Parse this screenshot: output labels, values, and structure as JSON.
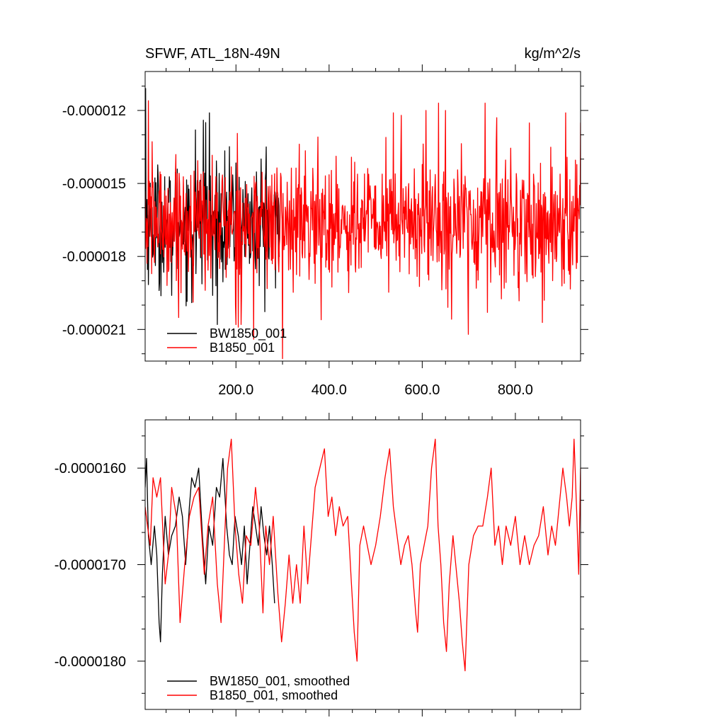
{
  "chart_data": [
    {
      "type": "line",
      "title": "SFWF, ATL_18N-49N",
      "units": "kg/m^2/s",
      "xlim": [
        5,
        940
      ],
      "ylim": [
        -2.23e-05,
        -1.04e-05
      ],
      "x_ticks": [
        200,
        400,
        600,
        800
      ],
      "x_tick_labels": [
        "200.0",
        "400.0",
        "600.0",
        "800.0"
      ],
      "y_ticks": [
        -1.2e-05,
        -1.5e-05,
        -1.8e-05,
        -2.1e-05
      ],
      "y_tick_labels": [
        "-0.000012",
        "-0.000015",
        "-0.000018",
        "-0.000021"
      ],
      "legend_position": "bottom-left",
      "series": [
        {
          "name": "BW1850_001",
          "color": "#000000",
          "x_range": [
            5,
            293
          ],
          "mean": -1.66e-05,
          "spread": 1.2e-06,
          "peaks": [
            [
              6,
              -1.11e-05
            ],
            [
              113,
              -1.28e-05
            ],
            [
              130,
              -1.24e-05
            ],
            [
              135,
              -1.25e-05
            ],
            [
              143,
              -1.21e-05
            ],
            [
              265,
              -1.35e-05
            ],
            [
              285,
              -1.29e-05
            ]
          ],
          "troughs": [
            [
              35,
              -1.94e-05
            ],
            [
              62,
              -1.96e-05
            ],
            [
              105,
              -1.99e-05
            ],
            [
              150,
              -1.96e-05
            ],
            [
              250,
              -1.92e-05
            ],
            [
              285,
              -1.93e-05
            ]
          ]
        },
        {
          "name": "B1850_001",
          "color": "#ff0000",
          "x_range": [
            5,
            940
          ],
          "mean": -1.66e-05,
          "spread": 1.3e-06,
          "peaks": [
            [
              12,
              -1.16e-05
            ],
            [
              538,
              -1.21e-05
            ],
            [
              555,
              -1.22e-05
            ],
            [
              608,
              -1.2e-05
            ],
            [
              635,
              -1.17e-05
            ],
            [
              650,
              -1.2e-05
            ],
            [
              735,
              -1.17e-05
            ],
            [
              760,
              -1.23e-05
            ],
            [
              908,
              -1.21e-05
            ],
            [
              940,
              -1.25e-05
            ]
          ],
          "troughs": [
            [
              200,
              -2.08e-05
            ],
            [
              238,
              -2.14e-05
            ],
            [
              300,
              -2.22e-05
            ],
            [
              383,
              -2.06e-05
            ],
            [
              699,
              -2.12e-05
            ],
            [
              740,
              -2.03e-05
            ],
            [
              862,
              -1.98e-05
            ]
          ]
        }
      ]
    },
    {
      "type": "line",
      "xlim": [
        5,
        940
      ],
      "ylim": [
        -1.85e-05,
        -1.55e-05
      ],
      "x_ticks": [
        200,
        400,
        600,
        800
      ],
      "y_ticks": [
        -1.6e-05,
        -1.7e-05,
        -1.8e-05
      ],
      "y_tick_labels": [
        "-0.0000160",
        "-0.0000170",
        "-0.0000180"
      ],
      "legend_position": "bottom-left",
      "series": [
        {
          "name": "BW1850_001, smoothed",
          "color": "#000000",
          "x_range": [
            5,
            283
          ],
          "points": [
            [
              5,
              -1.62e-05
            ],
            [
              8,
              -1.59e-05
            ],
            [
              12,
              -1.67e-05
            ],
            [
              18,
              -1.7e-05
            ],
            [
              25,
              -1.66e-05
            ],
            [
              30,
              -1.69e-05
            ],
            [
              35,
              -1.76e-05
            ],
            [
              38,
              -1.78e-05
            ],
            [
              42,
              -1.71e-05
            ],
            [
              48,
              -1.65e-05
            ],
            [
              55,
              -1.69e-05
            ],
            [
              62,
              -1.67e-05
            ],
            [
              70,
              -1.66e-05
            ],
            [
              78,
              -1.63e-05
            ],
            [
              85,
              -1.65e-05
            ],
            [
              92,
              -1.7e-05
            ],
            [
              100,
              -1.64e-05
            ],
            [
              105,
              -1.61e-05
            ],
            [
              112,
              -1.62e-05
            ],
            [
              120,
              -1.6e-05
            ],
            [
              128,
              -1.67e-05
            ],
            [
              135,
              -1.72e-05
            ],
            [
              142,
              -1.66e-05
            ],
            [
              150,
              -1.68e-05
            ],
            [
              158,
              -1.62e-05
            ],
            [
              165,
              -1.63e-05
            ],
            [
              172,
              -1.59e-05
            ],
            [
              180,
              -1.66e-05
            ],
            [
              186,
              -1.69e-05
            ],
            [
              192,
              -1.7e-05
            ],
            [
              198,
              -1.65e-05
            ],
            [
              205,
              -1.67e-05
            ],
            [
              212,
              -1.7e-05
            ],
            [
              218,
              -1.66e-05
            ],
            [
              224,
              -1.72e-05
            ],
            [
              230,
              -1.68e-05
            ],
            [
              236,
              -1.64e-05
            ],
            [
              242,
              -1.66e-05
            ],
            [
              248,
              -1.68e-05
            ],
            [
              254,
              -1.64e-05
            ],
            [
              260,
              -1.67e-05
            ],
            [
              266,
              -1.69e-05
            ],
            [
              272,
              -1.66e-05
            ],
            [
              278,
              -1.7e-05
            ],
            [
              283,
              -1.74e-05
            ]
          ]
        },
        {
          "name": "B1850_001, smoothed",
          "color": "#ff0000",
          "x_range": [
            5,
            940
          ],
          "points": [
            [
              5,
              -1.64e-05
            ],
            [
              10,
              -1.66e-05
            ],
            [
              16,
              -1.68e-05
            ],
            [
              22,
              -1.61e-05
            ],
            [
              30,
              -1.63e-05
            ],
            [
              38,
              -1.61e-05
            ],
            [
              48,
              -1.72e-05
            ],
            [
              55,
              -1.69e-05
            ],
            [
              62,
              -1.62e-05
            ],
            [
              72,
              -1.65e-05
            ],
            [
              80,
              -1.76e-05
            ],
            [
              90,
              -1.7e-05
            ],
            [
              100,
              -1.65e-05
            ],
            [
              110,
              -1.63e-05
            ],
            [
              120,
              -1.62e-05
            ],
            [
              132,
              -1.71e-05
            ],
            [
              140,
              -1.66e-05
            ],
            [
              150,
              -1.63e-05
            ],
            [
              160,
              -1.72e-05
            ],
            [
              168,
              -1.76e-05
            ],
            [
              175,
              -1.68e-05
            ],
            [
              182,
              -1.6e-05
            ],
            [
              190,
              -1.57e-05
            ],
            [
              198,
              -1.66e-05
            ],
            [
              206,
              -1.71e-05
            ],
            [
              214,
              -1.74e-05
            ],
            [
              222,
              -1.67e-05
            ],
            [
              232,
              -1.68e-05
            ],
            [
              242,
              -1.62e-05
            ],
            [
              250,
              -1.66e-05
            ],
            [
              258,
              -1.75e-05
            ],
            [
              264,
              -1.66e-05
            ],
            [
              272,
              -1.7e-05
            ],
            [
              280,
              -1.65e-05
            ],
            [
              290,
              -1.73e-05
            ],
            [
              298,
              -1.78e-05
            ],
            [
              306,
              -1.74e-05
            ],
            [
              314,
              -1.69e-05
            ],
            [
              322,
              -1.74e-05
            ],
            [
              330,
              -1.7e-05
            ],
            [
              338,
              -1.74e-05
            ],
            [
              346,
              -1.66e-05
            ],
            [
              354,
              -1.72e-05
            ],
            [
              362,
              -1.67e-05
            ],
            [
              370,
              -1.62e-05
            ],
            [
              380,
              -1.6e-05
            ],
            [
              390,
              -1.58e-05
            ],
            [
              398,
              -1.65e-05
            ],
            [
              406,
              -1.63e-05
            ],
            [
              414,
              -1.67e-05
            ],
            [
              422,
              -1.64e-05
            ],
            [
              430,
              -1.66e-05
            ],
            [
              440,
              -1.65e-05
            ],
            [
              448,
              -1.72e-05
            ],
            [
              454,
              -1.77e-05
            ],
            [
              460,
              -1.8e-05
            ],
            [
              466,
              -1.68e-05
            ],
            [
              474,
              -1.66e-05
            ],
            [
              482,
              -1.68e-05
            ],
            [
              490,
              -1.7e-05
            ],
            [
              500,
              -1.68e-05
            ],
            [
              510,
              -1.65e-05
            ],
            [
              520,
              -1.61e-05
            ],
            [
              530,
              -1.58e-05
            ],
            [
              538,
              -1.64e-05
            ],
            [
              546,
              -1.67e-05
            ],
            [
              554,
              -1.7e-05
            ],
            [
              562,
              -1.68e-05
            ],
            [
              570,
              -1.67e-05
            ],
            [
              578,
              -1.7e-05
            ],
            [
              586,
              -1.75e-05
            ],
            [
              590,
              -1.77e-05
            ],
            [
              596,
              -1.7e-05
            ],
            [
              604,
              -1.68e-05
            ],
            [
              612,
              -1.66e-05
            ],
            [
              620,
              -1.6e-05
            ],
            [
              628,
              -1.57e-05
            ],
            [
              634,
              -1.66e-05
            ],
            [
              640,
              -1.7e-05
            ],
            [
              646,
              -1.76e-05
            ],
            [
              652,
              -1.79e-05
            ],
            [
              658,
              -1.72e-05
            ],
            [
              666,
              -1.67e-05
            ],
            [
              672,
              -1.7e-05
            ],
            [
              680,
              -1.74e-05
            ],
            [
              686,
              -1.78e-05
            ],
            [
              692,
              -1.81e-05
            ],
            [
              700,
              -1.7e-05
            ],
            [
              710,
              -1.67e-05
            ],
            [
              720,
              -1.66e-05
            ],
            [
              730,
              -1.66e-05
            ],
            [
              740,
              -1.63e-05
            ],
            [
              748,
              -1.6e-05
            ],
            [
              756,
              -1.68e-05
            ],
            [
              764,
              -1.66e-05
            ],
            [
              772,
              -1.7e-05
            ],
            [
              780,
              -1.66e-05
            ],
            [
              790,
              -1.68e-05
            ],
            [
              800,
              -1.65e-05
            ],
            [
              810,
              -1.7e-05
            ],
            [
              820,
              -1.67e-05
            ],
            [
              830,
              -1.7e-05
            ],
            [
              840,
              -1.68e-05
            ],
            [
              850,
              -1.67e-05
            ],
            [
              860,
              -1.64e-05
            ],
            [
              870,
              -1.69e-05
            ],
            [
              878,
              -1.66e-05
            ],
            [
              886,
              -1.68e-05
            ],
            [
              894,
              -1.64e-05
            ],
            [
              902,
              -1.6e-05
            ],
            [
              910,
              -1.63e-05
            ],
            [
              916,
              -1.66e-05
            ],
            [
              922,
              -1.63e-05
            ],
            [
              926,
              -1.57e-05
            ],
            [
              932,
              -1.65e-05
            ],
            [
              936,
              -1.71e-05
            ],
            [
              940,
              -1.6e-05
            ]
          ]
        }
      ]
    }
  ]
}
